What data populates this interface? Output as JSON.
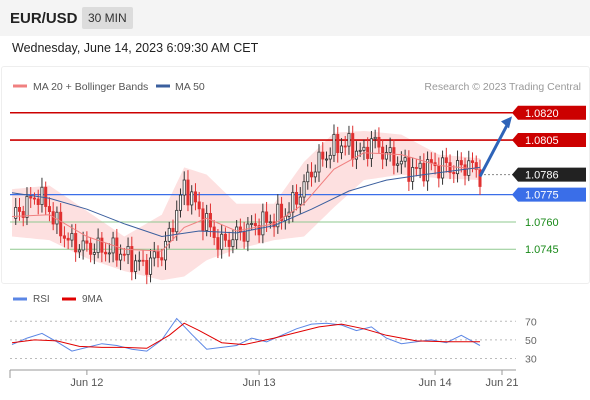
{
  "header": {
    "symbol": "EUR/USD",
    "timeframe": "30 MIN"
  },
  "datetime": "Wednesday, June 14, 2023 6:09:30 AM CET",
  "legend": {
    "ma20": "MA 20 + Bollinger Bands",
    "ma50": "MA 50",
    "credit": "Research © 2023 Trading Central",
    "rsi": "RSI",
    "rsi_ma": "9MA"
  },
  "colors": {
    "resistance": "#cc0000",
    "current": "#222222",
    "support_blue": "#3a6ee8",
    "support_green": "#1a8a1a",
    "ma20": "#f08080",
    "ma50": "#3b5f9e",
    "band_fill": "#fde0e0",
    "candle_up": "#333333",
    "candle_down": "#e03030",
    "arrow": "#2e63b8",
    "rsi": "#5b86e5",
    "rsi_ma": "#e00000"
  },
  "chart_data": [
    {
      "type": "candlestick",
      "symbol": "EUR/USD",
      "timeframe": "30 MIN",
      "x_ticks": [
        "Jun 12",
        "Jun 13",
        "Jun 14",
        "Jun 21"
      ],
      "ylim": [
        1.0727,
        1.0838
      ],
      "levels": [
        {
          "value": 1.082,
          "label": "1.0820",
          "kind": "resistance"
        },
        {
          "value": 1.0805,
          "label": "1.0805",
          "kind": "resistance"
        },
        {
          "value": 1.0786,
          "label": "1.0786",
          "kind": "current"
        },
        {
          "value": 1.0775,
          "label": "1.0775",
          "kind": "support"
        },
        {
          "value": 1.076,
          "label": "1.0760",
          "kind": "support_minor"
        },
        {
          "value": 1.0745,
          "label": "1.0745",
          "kind": "support_minor"
        }
      ],
      "projection": {
        "from": 1.0785,
        "to": 1.0818
      },
      "close_path": [
        [
          0,
          1.0762
        ],
        [
          4,
          1.077
        ],
        [
          7,
          1.0775
        ],
        [
          10,
          1.0767
        ],
        [
          12,
          1.0758
        ],
        [
          16,
          1.0748
        ],
        [
          20,
          1.0746
        ],
        [
          24,
          1.0745
        ],
        [
          28,
          1.0744
        ],
        [
          30,
          1.0742
        ],
        [
          33,
          1.0738
        ],
        [
          35,
          1.0736
        ],
        [
          38,
          1.074
        ],
        [
          40,
          1.0743
        ],
        [
          42,
          1.0752
        ],
        [
          44,
          1.0767
        ],
        [
          46,
          1.0779
        ],
        [
          48,
          1.0774
        ],
        [
          50,
          1.0765
        ],
        [
          52,
          1.076
        ],
        [
          54,
          1.0752
        ],
        [
          56,
          1.0748
        ],
        [
          58,
          1.075
        ],
        [
          60,
          1.0753
        ],
        [
          62,
          1.0755
        ],
        [
          64,
          1.0757
        ],
        [
          66,
          1.0759
        ],
        [
          68,
          1.076
        ],
        [
          70,
          1.0762
        ],
        [
          72,
          1.0763
        ],
        [
          74,
          1.0767
        ],
        [
          76,
          1.0773
        ],
        [
          78,
          1.078
        ],
        [
          80,
          1.0788
        ],
        [
          82,
          1.0793
        ],
        [
          84,
          1.0797
        ],
        [
          86,
          1.0801
        ],
        [
          88,
          1.0803
        ],
        [
          90,
          1.0802
        ],
        [
          92,
          1.0799
        ],
        [
          94,
          1.0797
        ],
        [
          96,
          1.0805
        ],
        [
          98,
          1.0801
        ],
        [
          100,
          1.0797
        ],
        [
          102,
          1.0795
        ],
        [
          104,
          1.0792
        ],
        [
          106,
          1.0789
        ],
        [
          108,
          1.0788
        ],
        [
          110,
          1.079
        ],
        [
          112,
          1.0791
        ],
        [
          114,
          1.079
        ],
        [
          116,
          1.0791
        ],
        [
          118,
          1.0789
        ],
        [
          120,
          1.079
        ],
        [
          122,
          1.0792
        ],
        [
          124,
          1.0788
        ],
        [
          125,
          1.0786
        ]
      ],
      "ma20": [
        [
          0,
          1.0763
        ],
        [
          10,
          1.0764
        ],
        [
          20,
          1.0752
        ],
        [
          30,
          1.0745
        ],
        [
          40,
          1.0744
        ],
        [
          46,
          1.0757
        ],
        [
          52,
          1.0762
        ],
        [
          60,
          1.0755
        ],
        [
          70,
          1.0759
        ],
        [
          78,
          1.077
        ],
        [
          86,
          1.0789
        ],
        [
          94,
          1.0798
        ],
        [
          104,
          1.0797
        ],
        [
          114,
          1.0791
        ],
        [
          125,
          1.0789
        ]
      ],
      "bb_upper": [
        [
          0,
          1.0778
        ],
        [
          10,
          1.078
        ],
        [
          20,
          1.0766
        ],
        [
          30,
          1.0752
        ],
        [
          40,
          1.0764
        ],
        [
          46,
          1.079
        ],
        [
          52,
          1.0786
        ],
        [
          60,
          1.077
        ],
        [
          70,
          1.077
        ],
        [
          78,
          1.0793
        ],
        [
          86,
          1.0809
        ],
        [
          94,
          1.081
        ],
        [
          104,
          1.0808
        ],
        [
          114,
          1.0797
        ],
        [
          125,
          1.0795
        ]
      ],
      "bb_lower": [
        [
          0,
          1.0752
        ],
        [
          10,
          1.075
        ],
        [
          20,
          1.074
        ],
        [
          30,
          1.0733
        ],
        [
          40,
          1.0728
        ],
        [
          46,
          1.073
        ],
        [
          52,
          1.0739
        ],
        [
          60,
          1.0745
        ],
        [
          70,
          1.075
        ],
        [
          78,
          1.0752
        ],
        [
          86,
          1.0768
        ],
        [
          94,
          1.0783
        ],
        [
          104,
          1.0786
        ],
        [
          114,
          1.0784
        ],
        [
          125,
          1.0783
        ]
      ],
      "ma50": [
        [
          0,
          1.0776
        ],
        [
          10,
          1.0773
        ],
        [
          20,
          1.0767
        ],
        [
          30,
          1.0759
        ],
        [
          40,
          1.0752
        ],
        [
          50,
          1.0755
        ],
        [
          60,
          1.0754
        ],
        [
          70,
          1.0758
        ],
        [
          80,
          1.0767
        ],
        [
          90,
          1.0777
        ],
        [
          100,
          1.0783
        ],
        [
          110,
          1.0786
        ],
        [
          125,
          1.079
        ]
      ]
    },
    {
      "type": "line",
      "name": "RSI",
      "y_ticks": [
        70,
        50,
        30
      ],
      "ylim": [
        22,
        80
      ],
      "rsi": [
        [
          0,
          45
        ],
        [
          4,
          52
        ],
        [
          8,
          57
        ],
        [
          12,
          48
        ],
        [
          16,
          38
        ],
        [
          20,
          42
        ],
        [
          24,
          46
        ],
        [
          28,
          44
        ],
        [
          32,
          40
        ],
        [
          36,
          38
        ],
        [
          40,
          50
        ],
        [
          44,
          73
        ],
        [
          48,
          56
        ],
        [
          52,
          40
        ],
        [
          56,
          42
        ],
        [
          60,
          44
        ],
        [
          64,
          52
        ],
        [
          68,
          48
        ],
        [
          72,
          55
        ],
        [
          76,
          62
        ],
        [
          80,
          67
        ],
        [
          84,
          68
        ],
        [
          88,
          66
        ],
        [
          92,
          60
        ],
        [
          96,
          64
        ],
        [
          100,
          52
        ],
        [
          104,
          46
        ],
        [
          108,
          48
        ],
        [
          112,
          50
        ],
        [
          116,
          47
        ],
        [
          120,
          55
        ],
        [
          125,
          44
        ]
      ],
      "rsi_ma": [
        [
          0,
          47
        ],
        [
          6,
          50
        ],
        [
          12,
          49
        ],
        [
          18,
          43
        ],
        [
          24,
          42
        ],
        [
          30,
          42
        ],
        [
          36,
          41
        ],
        [
          42,
          55
        ],
        [
          46,
          68
        ],
        [
          50,
          60
        ],
        [
          56,
          47
        ],
        [
          62,
          45
        ],
        [
          70,
          52
        ],
        [
          76,
          58
        ],
        [
          82,
          64
        ],
        [
          88,
          67
        ],
        [
          94,
          62
        ],
        [
          100,
          55
        ],
        [
          108,
          49
        ],
        [
          116,
          48
        ],
        [
          125,
          48
        ]
      ]
    }
  ]
}
